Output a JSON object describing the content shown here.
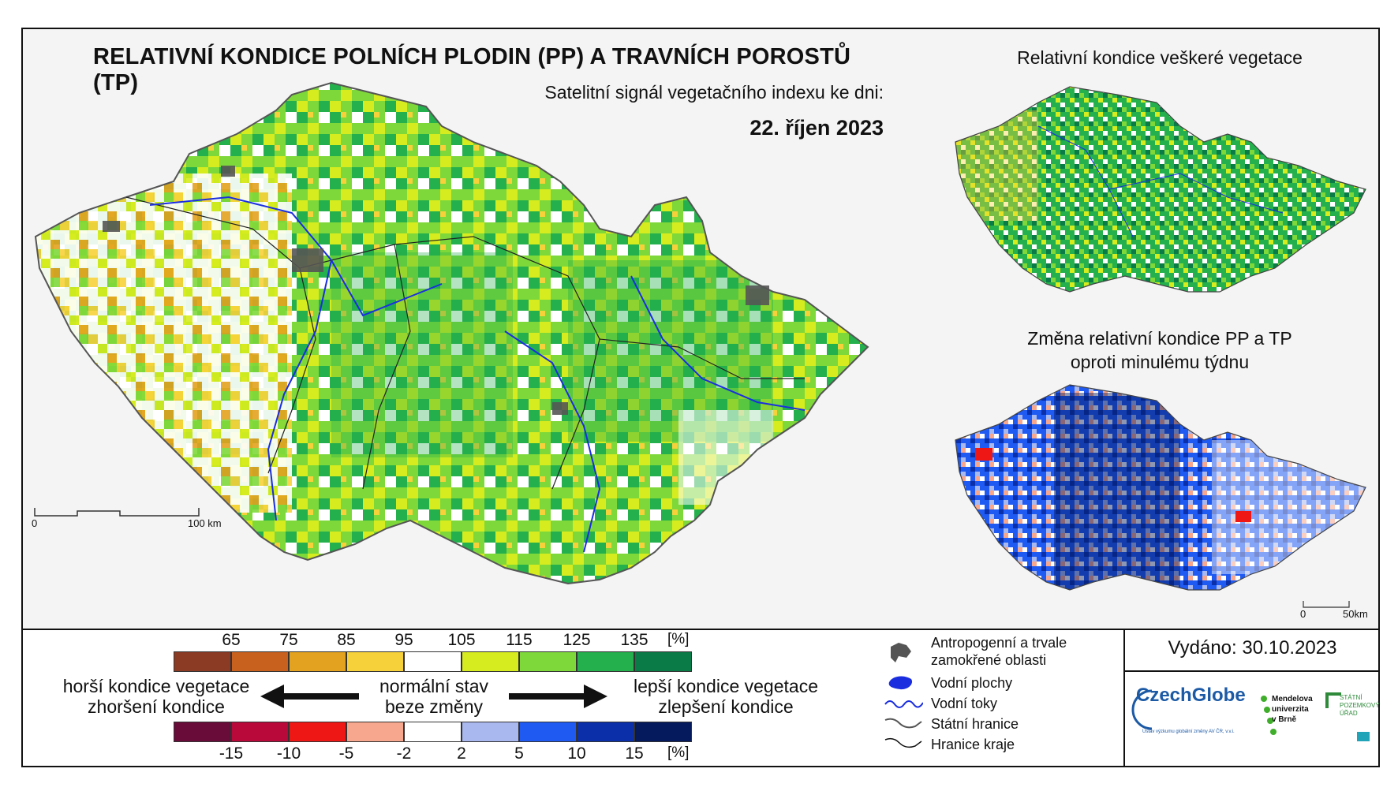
{
  "title": "RELATIVNÍ KONDICE POLNÍCH PLODIN (PP) A TRAVNÍCH POROSTŮ (TP)",
  "subtitle": "Satelitní signál vegetačního indexu ke dni:",
  "date": "22. říjen 2023",
  "side_maps": {
    "top_title": "Relativní kondice veškeré vegetace",
    "bottom_title_line1": "Změna relativní kondice PP a TP",
    "bottom_title_line2": "oproti minulému týdnu"
  },
  "scale_main": {
    "start": "0",
    "end": "100 km"
  },
  "scale_side": {
    "start": "0",
    "end": "50km"
  },
  "condition_scale": {
    "ticks": [
      "65",
      "75",
      "85",
      "95",
      "105",
      "115",
      "125",
      "135"
    ],
    "unit": "[%]",
    "colors": [
      "#8b3a24",
      "#c8611e",
      "#e3a21f",
      "#f7d13a",
      "#ffffff",
      "#d6ec1e",
      "#7ed83a",
      "#24b04c",
      "#0a7a46"
    ]
  },
  "change_scale": {
    "ticks": [
      "-15",
      "-10",
      "-5",
      "-2",
      "2",
      "5",
      "10",
      "15"
    ],
    "unit": "[%]",
    "colors": [
      "#6a0c3a",
      "#b8093a",
      "#ef1616",
      "#f6a78d",
      "#ffffff",
      "#a9b8ee",
      "#1f5af2",
      "#0a2fa8",
      "#041a5c"
    ]
  },
  "legend_labels": {
    "worse_line1": "horší kondice vegetace",
    "worse_line2": "zhoršení kondice",
    "normal_line1": "normální stav",
    "normal_line2": "beze změny",
    "better_line1": "lepší kondice vegetace",
    "better_line2": "zlepšení kondice"
  },
  "symbols": {
    "anthropogenic_line1": "Antropogenní a trvale",
    "anthropogenic_line2": "zamokřené oblasti",
    "water_areas": "Vodní plochy",
    "water_flows": "Vodní toky",
    "state_border": "Státní hranice",
    "region_border": "Hranice kraje"
  },
  "issued": "Vydáno: 30.10.2023",
  "logos": {
    "czechglobe": "CzechGlobe",
    "czechglobe_sub": "Ústav výzkumu globální změny AV ČR, v.v.i.",
    "mendel_line1": "Mendelova",
    "mendel_line2": "univerzita",
    "mendel_line3": "v Brně",
    "spu_line1": "STÁTNÍ",
    "spu_line2": "POZEMKOVÝ",
    "spu_line3": "ÚŘAD"
  }
}
